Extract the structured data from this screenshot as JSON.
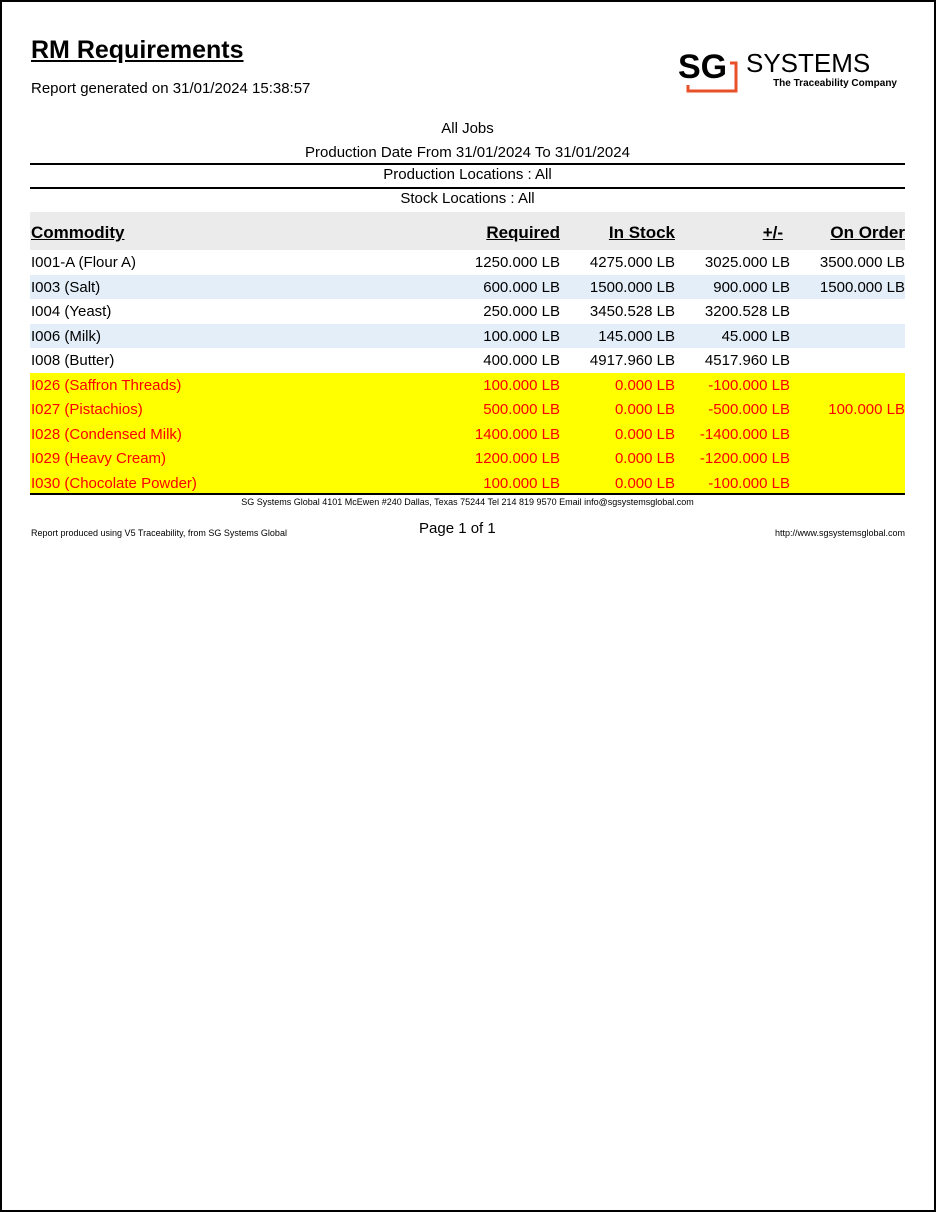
{
  "report": {
    "title": "RM Requirements",
    "generated": "Report generated on 31/01/2024 15:38:57",
    "logo": {
      "main": "SG",
      "word": "SYSTEMS",
      "tagline": "The Traceability Company",
      "accent": "#e8502a"
    },
    "filters": {
      "jobs": "All Jobs",
      "date_range": "Production Date From 31/01/2024 To 31/01/2024",
      "production_locations": "Production Locations : All",
      "stock_locations": "Stock Locations : All"
    }
  },
  "table": {
    "headers": [
      "Commodity",
      "Required",
      "In Stock",
      "+/-",
      "On Order"
    ],
    "rows": [
      {
        "cells": [
          "I001-A (Flour A)",
          "1250.000 LB",
          "4275.000 LB",
          "3025.000 LB",
          "3500.000 LB"
        ],
        "shortage": false
      },
      {
        "cells": [
          "I003 (Salt)",
          "600.000 LB",
          "1500.000 LB",
          "900.000 LB",
          "1500.000 LB"
        ],
        "shortage": false
      },
      {
        "cells": [
          "I004 (Yeast)",
          "250.000 LB",
          "3450.528 LB",
          "3200.528 LB",
          ""
        ],
        "shortage": false
      },
      {
        "cells": [
          "I006 (Milk)",
          "100.000 LB",
          "145.000 LB",
          "45.000 LB",
          ""
        ],
        "shortage": false
      },
      {
        "cells": [
          "I008 (Butter)",
          "400.000 LB",
          "4917.960 LB",
          "4517.960 LB",
          ""
        ],
        "shortage": false
      },
      {
        "cells": [
          "I026 (Saffron Threads)",
          "100.000 LB",
          "0.000 LB",
          "-100.000 LB",
          ""
        ],
        "shortage": true
      },
      {
        "cells": [
          "I027 (Pistachios)",
          "500.000 LB",
          "0.000 LB",
          "-500.000 LB",
          "100.000 LB"
        ],
        "shortage": true
      },
      {
        "cells": [
          "I028 (Condensed Milk)",
          "1400.000 LB",
          "0.000 LB",
          "-1400.000 LB",
          ""
        ],
        "shortage": true
      },
      {
        "cells": [
          "I029 (Heavy Cream)",
          "1200.000 LB",
          "0.000 LB",
          "-1200.000 LB",
          ""
        ],
        "shortage": true
      },
      {
        "cells": [
          "I030 (Chocolate Powder)",
          "100.000 LB",
          "0.000 LB",
          "-100.000 LB",
          ""
        ],
        "shortage": true
      }
    ],
    "colors": {
      "header_bg": "#ebebeb",
      "alt_row_bg": "#e3eef9",
      "shortage_bg": "#ffff00",
      "shortage_text": "#ff0000"
    }
  },
  "footer": {
    "address": "SG Systems Global 4101 McEwen #240 Dallas, Texas 75244 Tel 214 819 9570 Email info@sgsystemsglobal.com",
    "produced_by": "Report produced using V5 Traceability, from SG Systems Global",
    "page": "Page 1 of 1",
    "url": "http://www.sgsystemsglobal.com"
  }
}
